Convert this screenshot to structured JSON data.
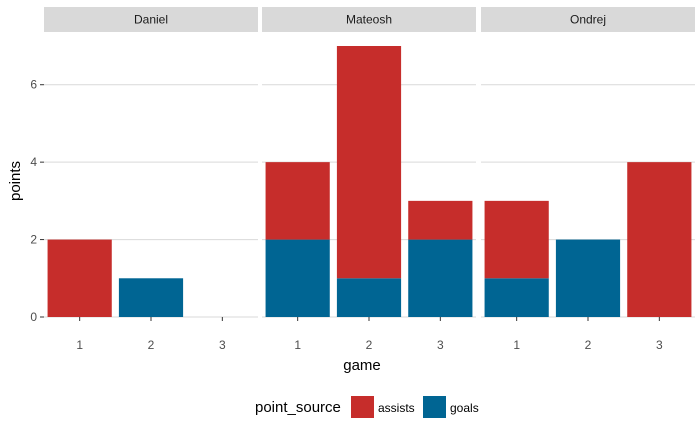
{
  "chart_data": {
    "type": "bar",
    "stacked": true,
    "facet_variable": "player",
    "facets": [
      "Daniel",
      "Mateosh",
      "Ondrej"
    ],
    "categories": [
      "1",
      "2",
      "3"
    ],
    "xlabel": "game",
    "ylabel": "points",
    "ylim": [
      0,
      7
    ],
    "y_ticks": [
      "0",
      "2",
      "4",
      "6"
    ],
    "grid": true,
    "legend": {
      "title": "point_source",
      "position": "bottom",
      "entries": [
        {
          "name": "assists",
          "color": "#c62d2b"
        },
        {
          "name": "goals",
          "color": "#006593"
        }
      ]
    },
    "panels": [
      {
        "facet": "Daniel",
        "goals": [
          0,
          1,
          0
        ],
        "assists": [
          2,
          0,
          0
        ]
      },
      {
        "facet": "Mateosh",
        "goals": [
          2,
          1,
          2
        ],
        "assists": [
          2,
          6,
          1
        ]
      },
      {
        "facet": "Ondrej",
        "goals": [
          1,
          2,
          0
        ],
        "assists": [
          2,
          0,
          4
        ]
      }
    ],
    "colors": {
      "assists": "#c62d2b",
      "goals": "#006593",
      "strip_bg": "#d9d9d9",
      "grid": "#d9d9d9"
    }
  }
}
